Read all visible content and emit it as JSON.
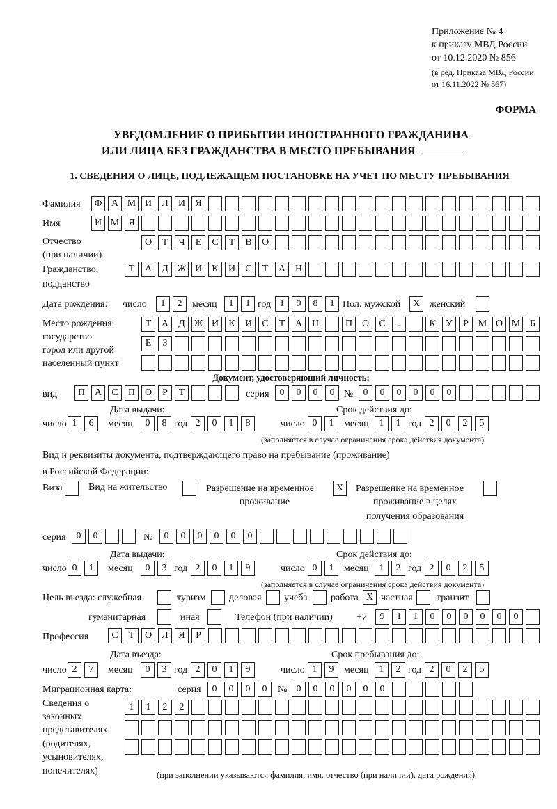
{
  "header": {
    "line1": "Приложение № 4",
    "line2": "к приказу МВД России",
    "line3": "от 10.12.2020 № 856",
    "line4": "(в ред. Приказа МВД России",
    "line5": "от 16.11.2022 № 867)",
    "forma": "ФОРМА",
    "title1": "УВЕДОМЛЕНИЕ О ПРИБЫТИИ ИНОСТРАННОГО ГРАЖДАНИНА",
    "title2": "ИЛИ ЛИЦА БЕЗ ГРАЖДАНСТВА В МЕСТО ПРЕБЫВАНИЯ",
    "section1": "1. СВЕДЕНИЯ О ЛИЦЕ, ПОДЛЕЖАЩЕМ ПОСТАНОВКЕ НА УЧЕТ ПО МЕСТУ ПРЕБЫВАНИЯ"
  },
  "labels": {
    "surname": "Фамилия",
    "name": "Имя",
    "patronymic1": "Отчество",
    "patronymic2": "(при наличии)",
    "citizenship1": "Гражданство,",
    "citizenship2": "подданство",
    "birth_date": "Дата рождения:",
    "day": "число",
    "month": "месяц",
    "year": "год",
    "sex": "Пол: мужской",
    "female": "женский",
    "birthplace1": "Место рождения:",
    "birthplace2": "государство",
    "birthplace3": "город или другой",
    "birthplace4": "населенный пункт",
    "id_doc": "Документ, удостоверяющий личность:",
    "kind": "вид",
    "series": "серия",
    "number": "№",
    "issue_date": "Дата выдачи:",
    "valid_until": "Срок действия до:",
    "validity_note": "(заполняется в случае ограничения срока действия документа)",
    "stay_doc1": "Вид и реквизиты документа, подтверждающего право на пребывание (проживание)",
    "stay_doc2": "в Российской Федерации:",
    "visa": "Виза",
    "residence": "Вид на жительство",
    "temp1": "Разрешение на временное",
    "temp2": "проживание",
    "tempedu1": "Разрешение на временное",
    "tempedu2": "проживание в целях",
    "tempedu3": "получения образования",
    "purpose": "Цель въезда: служебная",
    "tourism": "туризм",
    "business": "деловая",
    "study": "учеба",
    "work": "работа",
    "private": "частная",
    "transit": "транзит",
    "humanitarian": "гуманитарная",
    "other": "иная",
    "phone": "Телефон (при наличии)",
    "phone_prefix": "+7",
    "profession": "Профессия",
    "entry_date": "Дата въезда:",
    "stay_until": "Срок пребывания до:",
    "migration_card": "Миграционная карта:",
    "reps1": "Сведения о",
    "reps2": "законных",
    "reps3": "представителях",
    "reps4": "(родителях,",
    "reps5": "усыновителях,",
    "reps6": "попечителях)",
    "reps_note": "(при заполнении указываются фамилия, имя, отчество (при наличии), дата рождения)"
  },
  "person": {
    "surname": "ФАМИЛИЯ",
    "name": "ИМЯ",
    "patronymic": "ОТЧЕСТВО",
    "citizenship": "ТАДЖИКИСТАН",
    "birth_day": "12",
    "birth_month": "11",
    "birth_year": "1981",
    "sex_male": "X",
    "sex_female": "",
    "birthplace_row1": "ТАДЖИКИСТАН ПОС. КУРМОМБ",
    "birthplace_row2": "ЕЗ",
    "birthplace_row3": ""
  },
  "id_document": {
    "kind": "ПАСПОРТ",
    "series": "0000",
    "number": "000000",
    "issue_day": "16",
    "issue_month": "08",
    "issue_year": "2018",
    "valid_day": "01",
    "valid_month": "11",
    "valid_year": "2025"
  },
  "stay_document": {
    "visa": "",
    "residence_permit": "",
    "temporary_residence": "X",
    "temporary_residence_edu": "",
    "series": "00",
    "number": "000000",
    "issue_day": "01",
    "issue_month": "03",
    "issue_year": "2019",
    "valid_day": "01",
    "valid_month": "12",
    "valid_year": "2025"
  },
  "purpose": {
    "official": "",
    "tourism": "",
    "business": "",
    "study": "",
    "work": "X",
    "private": "",
    "transit": "",
    "humanitarian": "",
    "other": ""
  },
  "phone": "911000000",
  "profession": "СТОЛЯР",
  "entry": {
    "entry_day": "27",
    "entry_month": "03",
    "entry_year": "2019",
    "stay_day": "19",
    "stay_month": "12",
    "stay_year": "2025"
  },
  "migration_card": {
    "series": "0000",
    "number": "000000"
  },
  "representatives": {
    "row1": "1122",
    "row2": "",
    "row3": ""
  }
}
